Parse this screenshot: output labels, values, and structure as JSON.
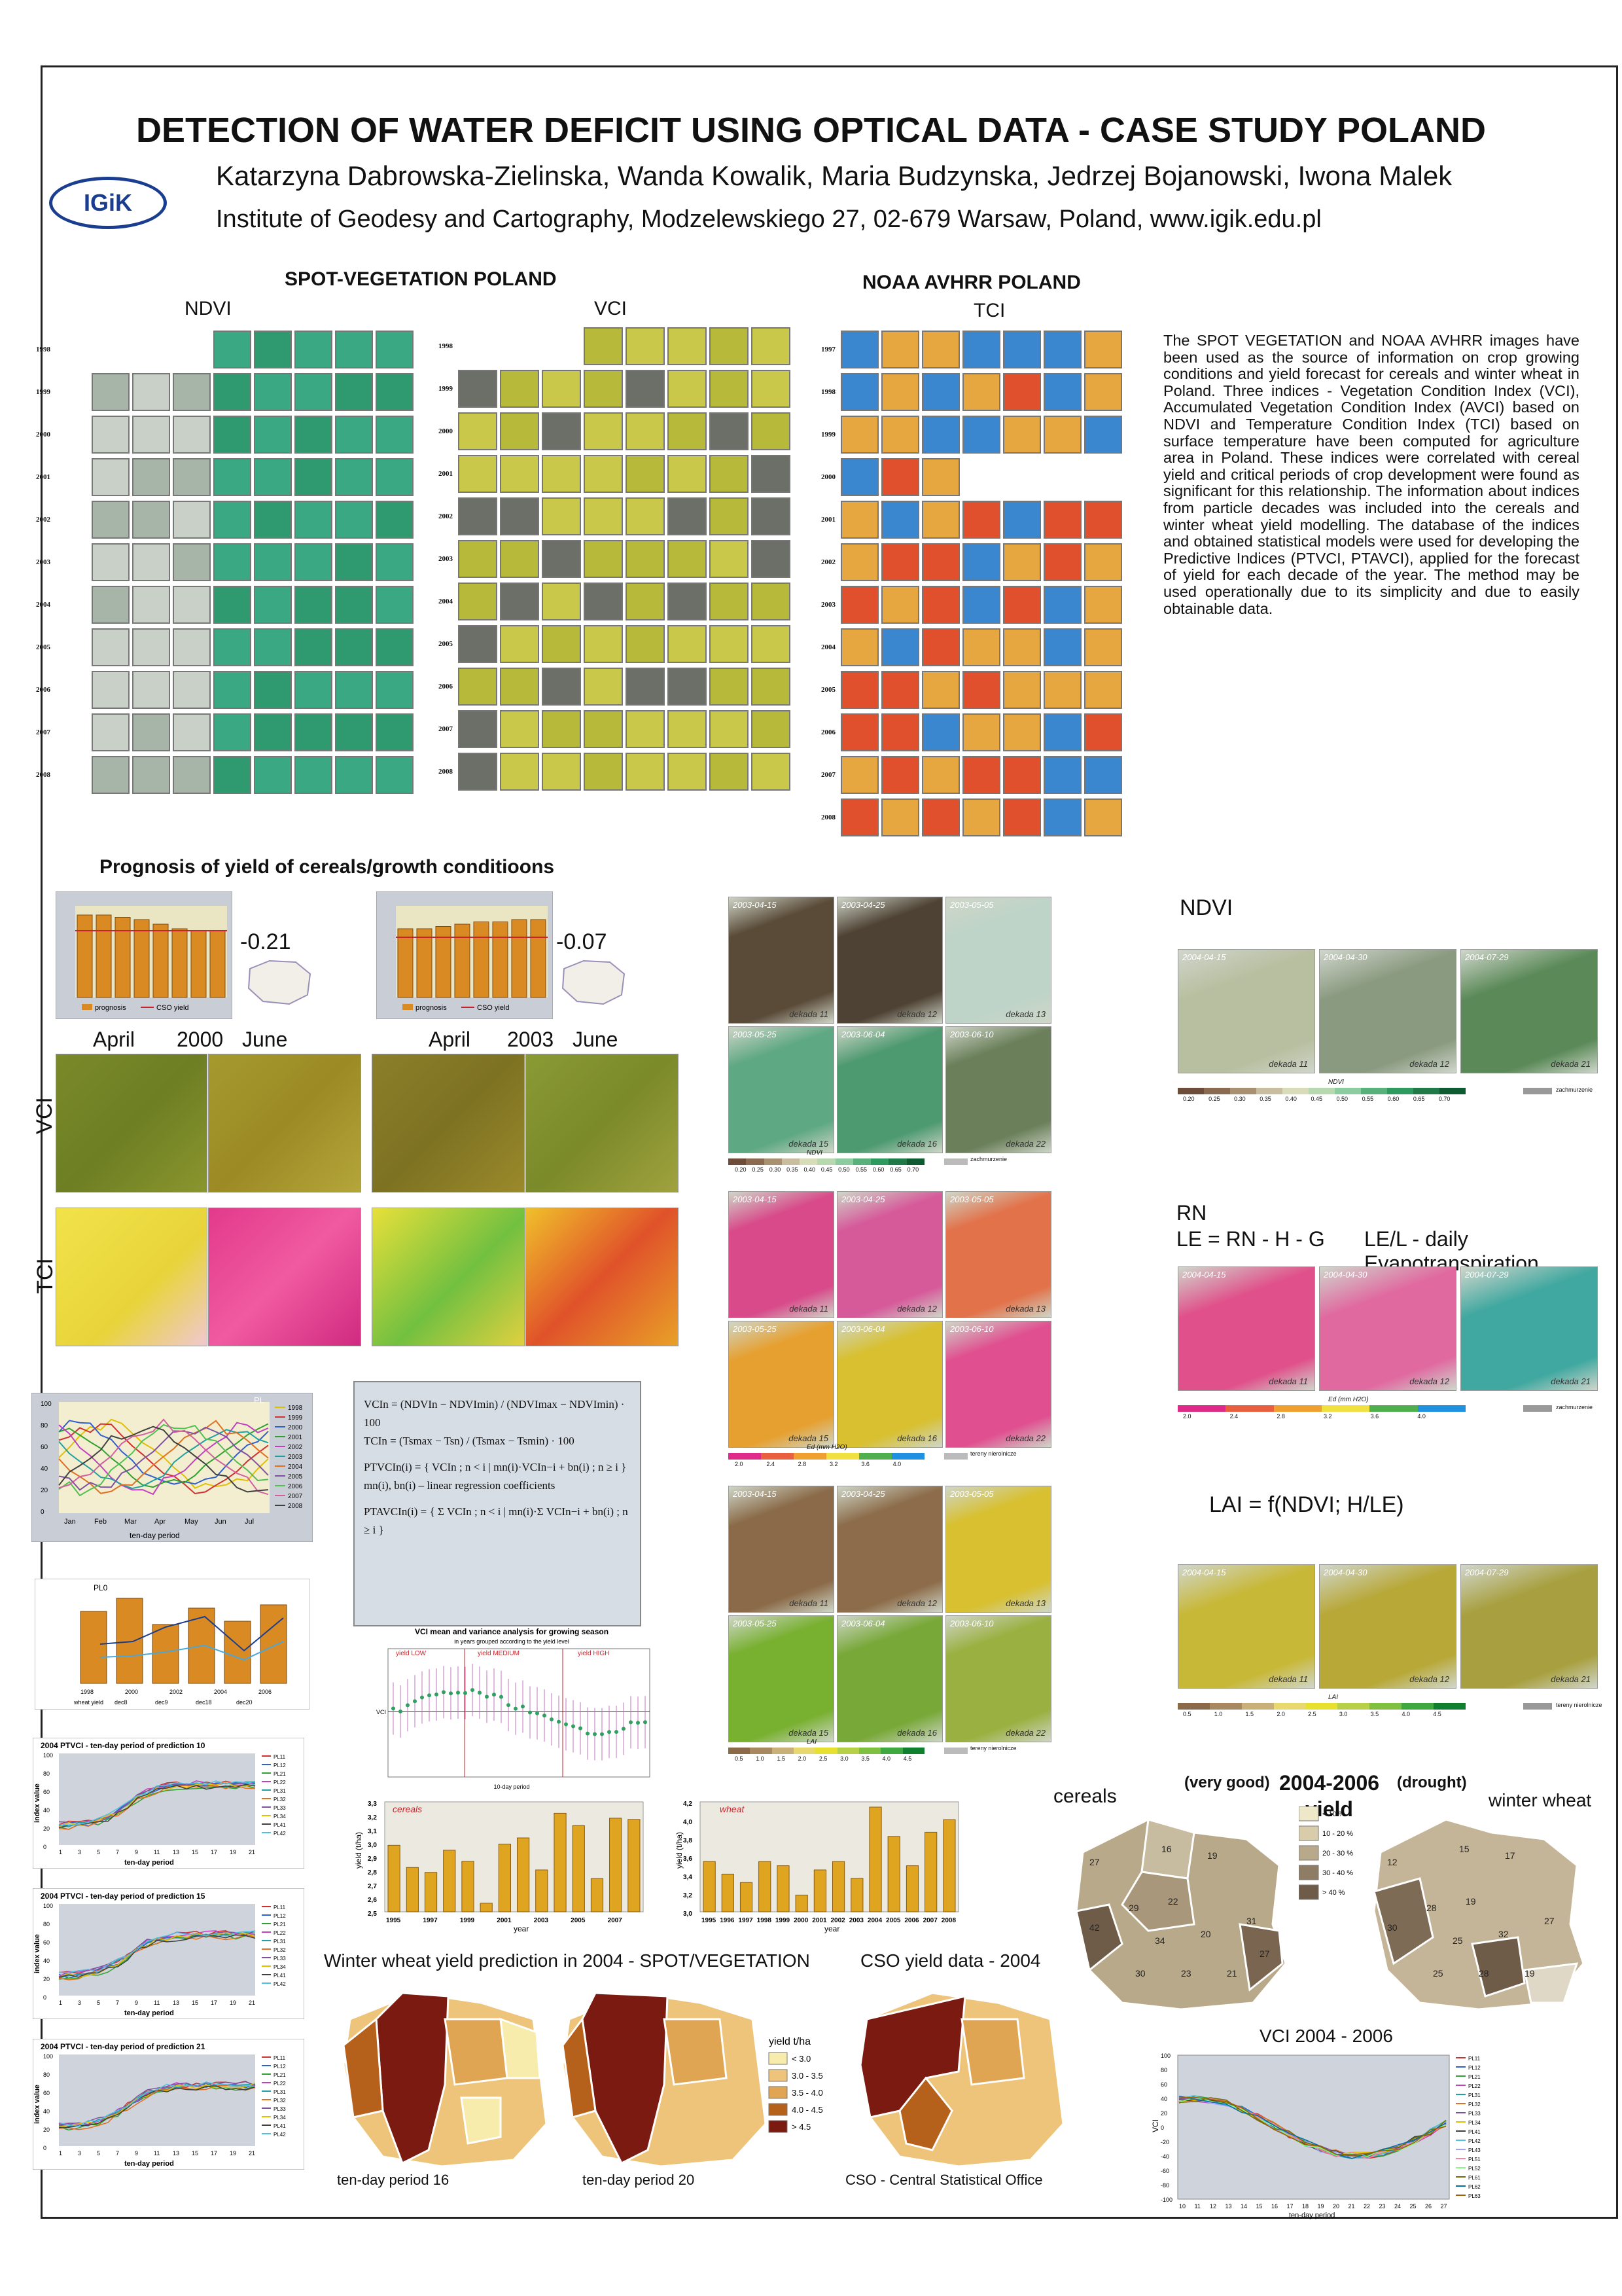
{
  "header": {
    "title": "DETECTION OF WATER DEFICIT USING OPTICAL DATA - CASE STUDY POLAND",
    "authors": "Katarzyna Dabrowska-Zielinska, Wanda Kowalik, Maria Budzynska, Jedrzej Bojanowski, Iwona Malek",
    "institute": "Institute of Geodesy and Cartography, Modzelewskiego 27, 02-679 Warsaw, Poland, www.igik.edu.pl",
    "logo_text": "IGiK"
  },
  "spot": {
    "title": "SPOT-VEGETATION  POLAND",
    "ndvi_label": "NDVI",
    "vci_label": "VCI",
    "ndvi_years": [
      "1998",
      "1999",
      "2000",
      "2001",
      "2002",
      "2003",
      "2004",
      "2005",
      "2006",
      "2007",
      "2008"
    ],
    "vci_years": [
      "1998",
      "1999",
      "2000",
      "2001",
      "2002",
      "2003",
      "2004",
      "2005",
      "2006",
      "2007",
      "2008"
    ]
  },
  "noaa": {
    "title": "NOAA AVHRR  POLAND",
    "tci_label": "TCI",
    "years": [
      "1997",
      "1998",
      "1999",
      "2000",
      "2001",
      "2002",
      "2003",
      "2004",
      "2005",
      "2006",
      "2007",
      "2008"
    ]
  },
  "abstract": "The SPOT VEGETATION and NOAA AVHRR images have been used as the source of information on crop growing conditions and yield forecast for cereals and winter wheat in Poland. Three indices - Vegetation Condition Index (VCI), Accumulated Vegetation Condition Index (AVCI) based on NDVI and Temperature Condition Index (TCI) based on surface temperature have been computed for agriculture area in Poland. These indices were correlated with cereal yield and critical periods of crop development were found as significant for this relationship. The information about indices from particle decades was included into the cereals and winter wheat yield modelling. The database of the indices and obtained statistical models were used for developing the Predictive Indices (PTVCI, PTAVCI), applied for the forecast of yield for each decade of the year. The method may be used operationally due to its simplicity and due to easily obtainable data.",
  "prognosis": {
    "title": "Prognosis of yield of cereals/growth conditioons",
    "corr_2000": "-0.21",
    "corr_2003": "-0.07",
    "april": "April",
    "june": "June",
    "year_2000": "2000",
    "year_2003": "2003",
    "vci": "VCI",
    "tci": "TCI",
    "legend_prognosis": "prognosis",
    "legend_cso": "CSO yield",
    "bars_2000": [
      3.6,
      3.6,
      3.5,
      3.4,
      3.2,
      3.0,
      2.9,
      2.9
    ],
    "bars_2003": [
      3.0,
      3.0,
      3.1,
      3.2,
      3.3,
      3.3,
      3.4,
      3.4
    ]
  },
  "maps_right": {
    "ndvi_label": "NDVI",
    "rn_label": "RN",
    "le_label": "LE = RN - H - G",
    "le_desc": "LE/L - daily Evapotranspiration",
    "lai_label": "LAI = f(NDVI; H/LE)",
    "dates_top": [
      "2003-04-15",
      "2003-04-25",
      "2003-05-05",
      "2003-05-25",
      "2003-06-04",
      "2003-06-10"
    ],
    "decades_top": [
      "dekada 11",
      "dekada 12",
      "dekada 13",
      "dekada 15",
      "dekada 16",
      "dekada 22"
    ],
    "dates_side": [
      "2004-04-15",
      "2004-04-30",
      "2004-07-29"
    ],
    "decades_side": [
      "dekada 11",
      "dekada 12",
      "dekada 21"
    ],
    "ndvi_scale": [
      "0.20",
      "0.25",
      "0.30",
      "0.35",
      "0.40",
      "0.45",
      "0.50",
      "0.55",
      "0.60",
      "0.65",
      "0.70"
    ],
    "le_scale": [
      "2.0",
      "2.4",
      "2.8",
      "3.2",
      "3.6",
      "4.0"
    ],
    "lai_scale": [
      "0.5",
      "1.0",
      "1.5",
      "2.0",
      "2.5",
      "3.0",
      "3.5",
      "4.0",
      "4.5"
    ],
    "cloud_legend": "zachmurzenie",
    "nonagri_legend": "tereny nierolnicze",
    "ndvi_axis": "NDVI",
    "le_axis": "Ed (mm H2O)",
    "lai_axis": "LAI"
  },
  "formulas": {
    "vci": "VCIn = (NDVIn − NDVImin) / (NDVImax − NDVImin) · 100",
    "tci": "TCIn = (Tsmax − Tsn) / (Tsmax − Tsmin) · 100",
    "ptvci": "PTVCIn(i) = { VCIn ; n < i  |  mn(i)·VCIn−i + bn(i) ; n ≥ i }",
    "coeff": "mn(i), bn(i) – linear regression coefficients",
    "ptavci": "PTAVCIn(i) = { Σ VCIn ; n < i  |  mn(i)·Σ VCIn−i + bn(i) ; n ≥ i }"
  },
  "pl_chart": {
    "label": "PL",
    "years": [
      "1998",
      "1999",
      "2000",
      "2001",
      "2002",
      "2003",
      "2004",
      "2005",
      "2006",
      "2007",
      "2008"
    ],
    "months": [
      "Jan",
      "Feb",
      "Mar",
      "Apr",
      "May",
      "Jun",
      "Jul"
    ],
    "xlabel": "ten-day period"
  },
  "pl0_chart": {
    "label": "PL0",
    "years": [
      "1998",
      "2000",
      "2002",
      "2004",
      "2006"
    ],
    "legend": [
      "wheat yield",
      "dec8",
      "dec9",
      "dec18",
      "dec20"
    ]
  },
  "ptvci": [
    {
      "title": "2004 PTVCI - ten-day period of prediction 10"
    },
    {
      "title": "2004 PTVCI - ten-day period of prediction 15"
    },
    {
      "title": "2004 PTVCI - ten-day period of prediction 21"
    }
  ],
  "ptvci_axes": {
    "ylabel": "index value",
    "xlabel": "ten-day period",
    "ticks": [
      "1",
      "3",
      "5",
      "7",
      "9",
      "11",
      "13",
      "15",
      "17",
      "19",
      "21"
    ],
    "yticks": [
      "100",
      "80",
      "60",
      "40",
      "20",
      "0"
    ]
  },
  "variance": {
    "title": "VCI mean and variance analysis for growing season",
    "subtitle": "in years grouped according to the yield level",
    "low": "yield LOW",
    "medium": "yield MEDIUM",
    "high": "yield HIGH",
    "xlabel": "10-day period",
    "ylabel": "VCI"
  },
  "cereals_chart": {
    "label": "cereals",
    "ylabel": "yield (t/ha)",
    "xlabel": "year",
    "years": [
      "1995",
      "1996",
      "1997",
      "1998",
      "1999",
      "2000",
      "2001",
      "2002",
      "2003",
      "2004",
      "2005",
      "2006",
      "2007",
      "2008"
    ],
    "xticks": [
      "1995",
      "1997",
      "1999",
      "2001",
      "2003",
      "2005",
      "2007"
    ],
    "values": [
      3.04,
      2.86,
      2.82,
      3.0,
      2.91,
      2.57,
      3.05,
      3.1,
      2.84,
      3.3,
      3.2,
      2.77,
      3.26,
      3.25
    ],
    "yticks": [
      "3,3",
      "3,2",
      "3,1",
      "3,0",
      "2,9",
      "2,8",
      "2,7",
      "2,6",
      "2,5"
    ]
  },
  "wheat_chart": {
    "label": "wheat",
    "ylabel": "yield (t/ha)",
    "xlabel": "year",
    "years": [
      "1995",
      "1996",
      "1997",
      "1998",
      "1999",
      "2000",
      "2001",
      "2002",
      "2003",
      "2004",
      "2005",
      "2006",
      "2007",
      "2008"
    ],
    "values": [
      3.6,
      3.45,
      3.35,
      3.6,
      3.55,
      3.2,
      3.5,
      3.6,
      3.4,
      4.25,
      3.9,
      3.55,
      3.95,
      4.1
    ],
    "yticks": [
      "4,2",
      "4,0",
      "3,8",
      "3,6",
      "3,4",
      "3,2",
      "3,0"
    ]
  },
  "yield_maps": {
    "cereals": "cereals",
    "winter_wheat": "winter wheat",
    "very_good": "(very good)",
    "years": "2004-2006",
    "drought": "(drought)",
    "yield": "yield",
    "legend": [
      "< 10 %",
      "10 - 20 %",
      "20 - 30 %",
      "30 - 40 %",
      "> 40 %"
    ],
    "cereals_nums": [
      "27",
      "16",
      "19",
      "22",
      "29",
      "42",
      "34",
      "20",
      "31",
      "30",
      "23",
      "21",
      "27"
    ],
    "wheat_nums": [
      "12",
      "15",
      "17",
      "19",
      "28",
      "30",
      "25",
      "32",
      "27",
      "25",
      "28",
      "19"
    ]
  },
  "wheat_pred": {
    "title_spot": "Winter wheat yield prediction in 2004 - SPOT/VEGETATION",
    "title_cso": "CSO yield data - 2004",
    "cap1": "ten-day period 16",
    "cap2": "ten-day period 20",
    "cap3": "CSO - Central Statistical Office",
    "legend_title": "yield t/ha",
    "legend": [
      "< 3.0",
      "3.0 - 3.5",
      "3.5 - 4.0",
      "4.0 - 4.5",
      "> 4.5"
    ]
  },
  "vci0406": {
    "title": "VCI 2004 - 2006",
    "ylabel": "VCI",
    "xlabel": "ten-day period",
    "yticks": [
      "100",
      "80",
      "60",
      "40",
      "20",
      "0",
      "-20",
      "-40",
      "-60",
      "-80",
      "-100"
    ],
    "xticks": [
      "10",
      "11",
      "12",
      "13",
      "14",
      "15",
      "16",
      "17",
      "18",
      "19",
      "20",
      "21",
      "22",
      "23",
      "24",
      "25",
      "26",
      "27"
    ],
    "legend": [
      "PL11",
      "PL12",
      "PL21",
      "PL22",
      "PL31",
      "PL32",
      "PL33",
      "PL34",
      "PL41",
      "PL42",
      "PL43",
      "PL51",
      "PL52",
      "PL61",
      "PL62",
      "PL63"
    ]
  },
  "colors": {
    "ndvi_green": "#2fa878",
    "vci_yellow": "#c8c63a",
    "tci_red": "#e04a2a",
    "tci_blue": "#2f7fd0",
    "bar_orange": "#d98a22",
    "dark_red": "#7a1a10"
  }
}
